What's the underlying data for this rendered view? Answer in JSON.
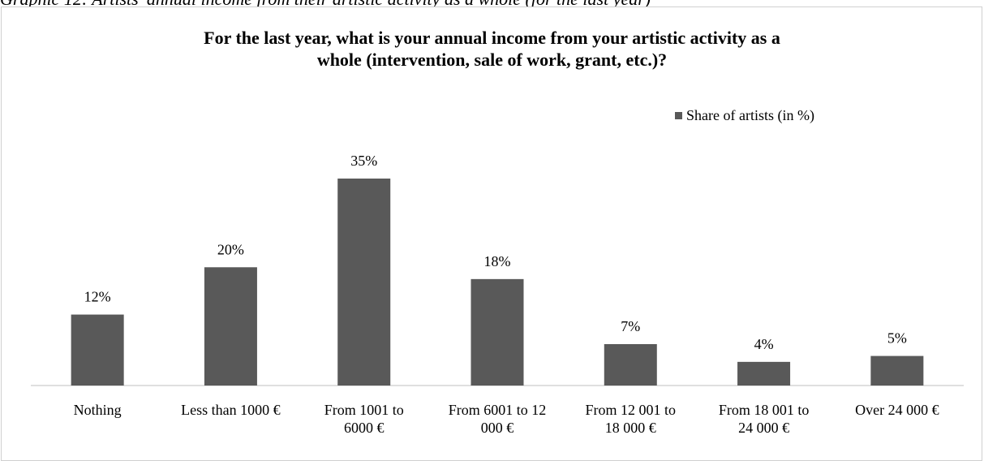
{
  "caption": "Graphic 12: Artists' annual income from their artistic activity as a whole (for the last year)",
  "chart_data": {
    "type": "bar",
    "title": "For the last year, what is your annual income from your artistic activity as a whole (intervention, sale of work, grant, etc.)?",
    "title_lines": [
      "For the last year, what is your annual income from your artistic activity as a",
      "whole (intervention, sale of work, grant, etc.)?"
    ],
    "legend_position": "top-right",
    "series": [
      {
        "name": "Share of artists (in %)",
        "color": "#595959",
        "values": [
          12,
          20,
          35,
          18,
          7,
          4,
          5
        ]
      }
    ],
    "categories": [
      [
        "Nothing"
      ],
      [
        "Less than 1000 €"
      ],
      [
        "From 1001 to",
        "6000 €"
      ],
      [
        "From 6001 to 12",
        "000 €"
      ],
      [
        "From 12 001 to",
        "18 000 €"
      ],
      [
        "From 18 001 to",
        "24 000 €"
      ],
      [
        "Over 24 000 €"
      ]
    ],
    "data_labels": [
      "12%",
      "20%",
      "35%",
      "18%",
      "7%",
      "4%",
      "5%"
    ],
    "unit": "%",
    "ylim": [
      0,
      40
    ],
    "grid": false
  }
}
